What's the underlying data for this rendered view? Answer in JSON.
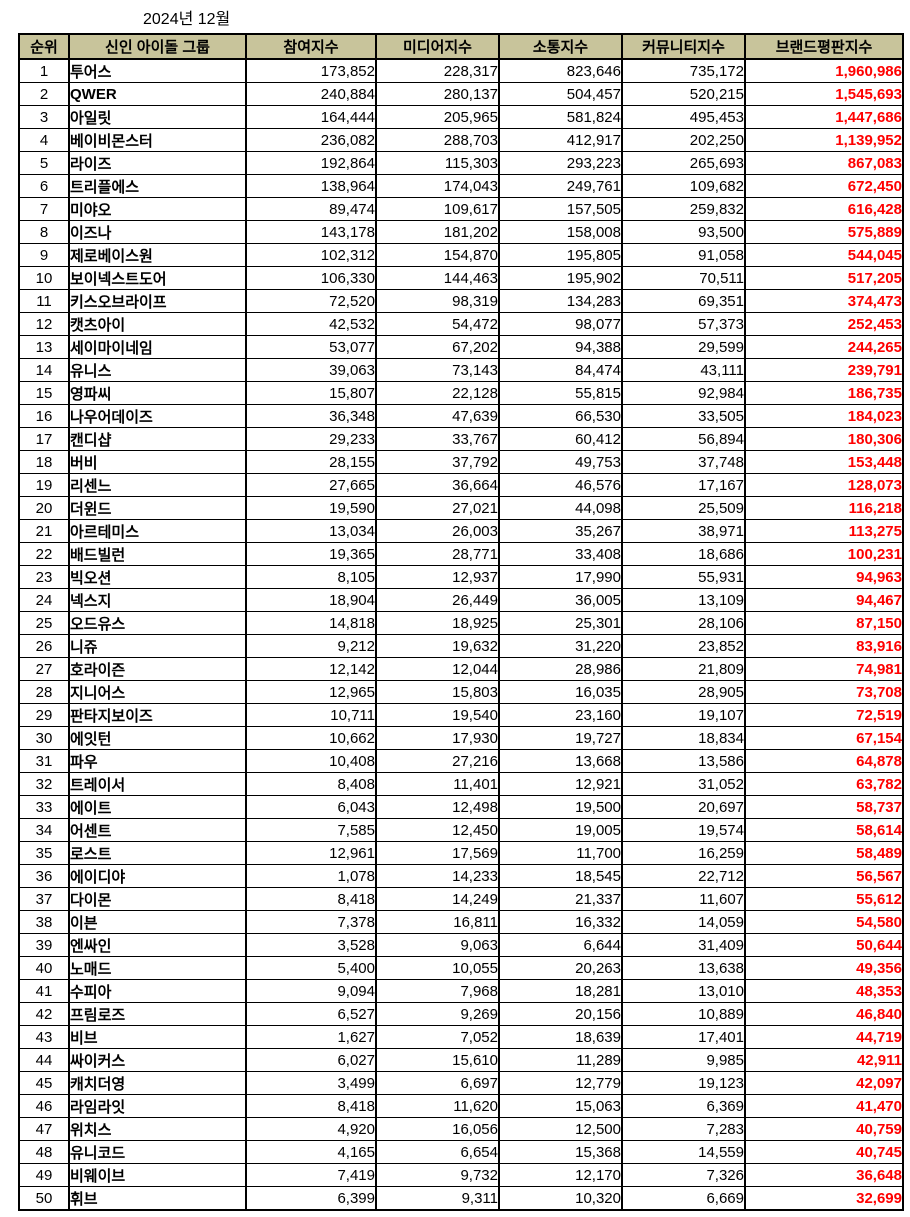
{
  "title": "2024년 12월",
  "colors": {
    "header_bg": "#c8c49b",
    "brand_index_text": "#ff0000",
    "border": "#000000",
    "body_text": "#000000"
  },
  "chart_data": {
    "type": "table",
    "title": "2024년 12월",
    "columns": [
      "순위",
      "신인 아이돌 그룹",
      "참여지수",
      "미디어지수",
      "소통지수",
      "커뮤니티지수",
      "브랜드평판지수"
    ],
    "rows": [
      [
        "1",
        "투어스",
        "173,852",
        "228,317",
        "823,646",
        "735,172",
        "1,960,986"
      ],
      [
        "2",
        "QWER",
        "240,884",
        "280,137",
        "504,457",
        "520,215",
        "1,545,693"
      ],
      [
        "3",
        "아일릿",
        "164,444",
        "205,965",
        "581,824",
        "495,453",
        "1,447,686"
      ],
      [
        "4",
        "베이비몬스터",
        "236,082",
        "288,703",
        "412,917",
        "202,250",
        "1,139,952"
      ],
      [
        "5",
        "라이즈",
        "192,864",
        "115,303",
        "293,223",
        "265,693",
        "867,083"
      ],
      [
        "6",
        "트리플에스",
        "138,964",
        "174,043",
        "249,761",
        "109,682",
        "672,450"
      ],
      [
        "7",
        "미야오",
        "89,474",
        "109,617",
        "157,505",
        "259,832",
        "616,428"
      ],
      [
        "8",
        "이즈나",
        "143,178",
        "181,202",
        "158,008",
        "93,500",
        "575,889"
      ],
      [
        "9",
        "제로베이스원",
        "102,312",
        "154,870",
        "195,805",
        "91,058",
        "544,045"
      ],
      [
        "10",
        "보이넥스트도어",
        "106,330",
        "144,463",
        "195,902",
        "70,511",
        "517,205"
      ],
      [
        "11",
        "키스오브라이프",
        "72,520",
        "98,319",
        "134,283",
        "69,351",
        "374,473"
      ],
      [
        "12",
        "캣츠아이",
        "42,532",
        "54,472",
        "98,077",
        "57,373",
        "252,453"
      ],
      [
        "13",
        "세이마이네임",
        "53,077",
        "67,202",
        "94,388",
        "29,599",
        "244,265"
      ],
      [
        "14",
        "유니스",
        "39,063",
        "73,143",
        "84,474",
        "43,111",
        "239,791"
      ],
      [
        "15",
        "영파씨",
        "15,807",
        "22,128",
        "55,815",
        "92,984",
        "186,735"
      ],
      [
        "16",
        "나우어데이즈",
        "36,348",
        "47,639",
        "66,530",
        "33,505",
        "184,023"
      ],
      [
        "17",
        "캔디샵",
        "29,233",
        "33,767",
        "60,412",
        "56,894",
        "180,306"
      ],
      [
        "18",
        "버비",
        "28,155",
        "37,792",
        "49,753",
        "37,748",
        "153,448"
      ],
      [
        "19",
        "리센느",
        "27,665",
        "36,664",
        "46,576",
        "17,167",
        "128,073"
      ],
      [
        "20",
        "더윈드",
        "19,590",
        "27,021",
        "44,098",
        "25,509",
        "116,218"
      ],
      [
        "21",
        "아르테미스",
        "13,034",
        "26,003",
        "35,267",
        "38,971",
        "113,275"
      ],
      [
        "22",
        "배드빌런",
        "19,365",
        "28,771",
        "33,408",
        "18,686",
        "100,231"
      ],
      [
        "23",
        "빅오션",
        "8,105",
        "12,937",
        "17,990",
        "55,931",
        "94,963"
      ],
      [
        "24",
        "넥스지",
        "18,904",
        "26,449",
        "36,005",
        "13,109",
        "94,467"
      ],
      [
        "25",
        "오드유스",
        "14,818",
        "18,925",
        "25,301",
        "28,106",
        "87,150"
      ],
      [
        "26",
        "니쥬",
        "9,212",
        "19,632",
        "31,220",
        "23,852",
        "83,916"
      ],
      [
        "27",
        "호라이즌",
        "12,142",
        "12,044",
        "28,986",
        "21,809",
        "74,981"
      ],
      [
        "28",
        "지니어스",
        "12,965",
        "15,803",
        "16,035",
        "28,905",
        "73,708"
      ],
      [
        "29",
        "판타지보이즈",
        "10,711",
        "19,540",
        "23,160",
        "19,107",
        "72,519"
      ],
      [
        "30",
        "에잇턴",
        "10,662",
        "17,930",
        "19,727",
        "18,834",
        "67,154"
      ],
      [
        "31",
        "파우",
        "10,408",
        "27,216",
        "13,668",
        "13,586",
        "64,878"
      ],
      [
        "32",
        "트레이서",
        "8,408",
        "11,401",
        "12,921",
        "31,052",
        "63,782"
      ],
      [
        "33",
        "에이트",
        "6,043",
        "12,498",
        "19,500",
        "20,697",
        "58,737"
      ],
      [
        "34",
        "어센트",
        "7,585",
        "12,450",
        "19,005",
        "19,574",
        "58,614"
      ],
      [
        "35",
        "로스트",
        "12,961",
        "17,569",
        "11,700",
        "16,259",
        "58,489"
      ],
      [
        "36",
        "에이디야",
        "1,078",
        "14,233",
        "18,545",
        "22,712",
        "56,567"
      ],
      [
        "37",
        "다이몬",
        "8,418",
        "14,249",
        "21,337",
        "11,607",
        "55,612"
      ],
      [
        "38",
        "이븐",
        "7,378",
        "16,811",
        "16,332",
        "14,059",
        "54,580"
      ],
      [
        "39",
        "엔싸인",
        "3,528",
        "9,063",
        "6,644",
        "31,409",
        "50,644"
      ],
      [
        "40",
        "노매드",
        "5,400",
        "10,055",
        "20,263",
        "13,638",
        "49,356"
      ],
      [
        "41",
        "수피아",
        "9,094",
        "7,968",
        "18,281",
        "13,010",
        "48,353"
      ],
      [
        "42",
        "프림로즈",
        "6,527",
        "9,269",
        "20,156",
        "10,889",
        "46,840"
      ],
      [
        "43",
        "비브",
        "1,627",
        "7,052",
        "18,639",
        "17,401",
        "44,719"
      ],
      [
        "44",
        "싸이커스",
        "6,027",
        "15,610",
        "11,289",
        "9,985",
        "42,911"
      ],
      [
        "45",
        "캐치더영",
        "3,499",
        "6,697",
        "12,779",
        "19,123",
        "42,097"
      ],
      [
        "46",
        "라임라잇",
        "8,418",
        "11,620",
        "15,063",
        "6,369",
        "41,470"
      ],
      [
        "47",
        "위치스",
        "4,920",
        "16,056",
        "12,500",
        "7,283",
        "40,759"
      ],
      [
        "48",
        "유니코드",
        "4,165",
        "6,654",
        "15,368",
        "14,559",
        "40,745"
      ],
      [
        "49",
        "비웨이브",
        "7,419",
        "9,732",
        "12,170",
        "7,326",
        "36,648"
      ],
      [
        "50",
        "휘브",
        "6,399",
        "9,311",
        "10,320",
        "6,669",
        "32,699"
      ]
    ]
  }
}
